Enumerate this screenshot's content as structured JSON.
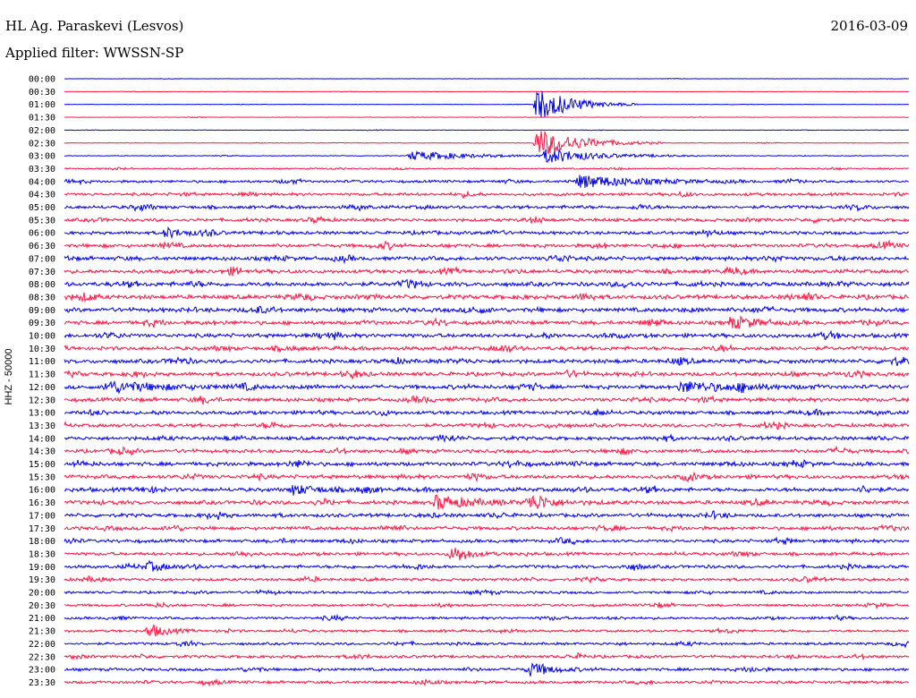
{
  "header": {
    "station": "HL Ag. Paraskevi (Lesvos)",
    "date": "2016-03-09",
    "filter": "Applied filter: WWSSN-SP"
  },
  "colors": {
    "trace_a": "#0000ee",
    "trace_b": "#ff1744",
    "text": "#000000",
    "background": "#ffffff"
  },
  "chart_data": {
    "type": "line",
    "title": "HL Ag. Paraskevi (Lesvos)",
    "subtitle": "Applied filter: WWSSN-SP",
    "ylabel": "HHZ - 50000",
    "xlabel": "",
    "grid": false,
    "legend": "none",
    "row_labels": [
      "00:00",
      "00:30",
      "01:00",
      "01:30",
      "02:00",
      "02:30",
      "03:00",
      "03:30",
      "04:00",
      "04:30",
      "05:00",
      "05:30",
      "06:00",
      "06:30",
      "07:00",
      "07:30",
      "08:00",
      "08:30",
      "09:00",
      "09:30",
      "10:00",
      "10:30",
      "11:00",
      "11:30",
      "12:00",
      "12:30",
      "13:00",
      "13:30",
      "14:00",
      "14:30",
      "15:00",
      "15:30",
      "16:00",
      "16:30",
      "17:00",
      "17:30",
      "18:00",
      "18:30",
      "19:00",
      "19:30",
      "20:00",
      "20:30",
      "21:00",
      "21:30",
      "22:00",
      "22:30",
      "23:00",
      "23:30"
    ],
    "series": [
      {
        "color_role": "blue",
        "rows": "even (00:00, 01:00, ...)"
      },
      {
        "color_role": "red",
        "rows": "odd (00:30, 01:30, ...)"
      }
    ],
    "noise_level": [
      0.05,
      0.05,
      0.05,
      0.06,
      0.06,
      0.08,
      0.1,
      0.18,
      0.35,
      0.4,
      0.45,
      0.45,
      0.45,
      0.5,
      0.55,
      0.55,
      0.6,
      0.6,
      0.6,
      0.55,
      0.55,
      0.55,
      0.55,
      0.55,
      0.55,
      0.55,
      0.5,
      0.5,
      0.5,
      0.5,
      0.55,
      0.55,
      0.55,
      0.55,
      0.5,
      0.5,
      0.45,
      0.45,
      0.45,
      0.4,
      0.35,
      0.35,
      0.35,
      0.35,
      0.35,
      0.4,
      0.4,
      0.4
    ],
    "events": [
      {
        "row": "01:00",
        "x": 0.56,
        "amp": 6.0,
        "dur": 0.04
      },
      {
        "row": "02:30",
        "x": 0.56,
        "amp": 5.0,
        "dur": 0.05
      },
      {
        "row": "03:00",
        "x": 0.41,
        "amp": 1.6,
        "dur": 0.07
      },
      {
        "row": "03:00",
        "x": 0.57,
        "amp": 2.5,
        "dur": 0.06
      },
      {
        "row": "04:00",
        "x": 0.61,
        "amp": 2.2,
        "dur": 0.07
      },
      {
        "row": "06:00",
        "x": 0.12,
        "amp": 1.8,
        "dur": 0.02
      },
      {
        "row": "09:30",
        "x": 0.79,
        "amp": 2.2,
        "dur": 0.03
      },
      {
        "row": "12:00",
        "x": 0.05,
        "amp": 2.0,
        "dur": 0.06
      },
      {
        "row": "12:00",
        "x": 0.73,
        "amp": 1.8,
        "dur": 0.06
      },
      {
        "row": "16:00",
        "x": 0.27,
        "amp": 1.6,
        "dur": 0.03
      },
      {
        "row": "16:30",
        "x": 0.44,
        "amp": 2.4,
        "dur": 0.04
      },
      {
        "row": "16:30",
        "x": 0.55,
        "amp": 1.8,
        "dur": 0.03
      },
      {
        "row": "18:30",
        "x": 0.46,
        "amp": 2.2,
        "dur": 0.02
      },
      {
        "row": "19:00",
        "x": 0.1,
        "amp": 1.6,
        "dur": 0.02
      },
      {
        "row": "21:30",
        "x": 0.1,
        "amp": 2.5,
        "dur": 0.02
      },
      {
        "row": "23:00",
        "x": 0.55,
        "amp": 1.8,
        "dur": 0.03
      }
    ]
  }
}
